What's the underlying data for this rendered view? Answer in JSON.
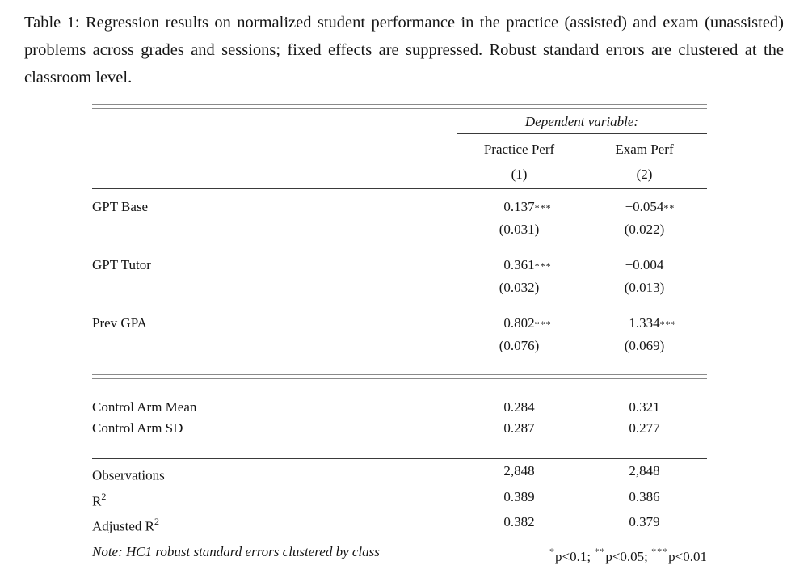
{
  "caption": "Table 1:  Regression results on normalized student performance in the practice (assisted) and exam (unassisted) problems across grades and sessions; fixed effects are suppressed.  Robust standard errors are clustered at the classroom level.",
  "table": {
    "dependent_variable_label": "Dependent variable:",
    "columns": [
      {
        "label": "Practice Perf",
        "number": "(1)"
      },
      {
        "label": "Exam Perf",
        "number": "(2)"
      }
    ],
    "coefficients": [
      {
        "label": "GPT Base",
        "estimates": [
          "0.137",
          "−0.054"
        ],
        "stars": [
          "***",
          "**"
        ],
        "se": [
          "(0.031)",
          "(0.022)"
        ]
      },
      {
        "label": "GPT Tutor",
        "estimates": [
          "0.361",
          "−0.004"
        ],
        "stars": [
          "***",
          ""
        ],
        "se": [
          "(0.032)",
          "(0.013)"
        ]
      },
      {
        "label": "Prev GPA",
        "estimates": [
          "0.802",
          "1.334"
        ],
        "stars": [
          "***",
          "***"
        ],
        "se": [
          "(0.076)",
          "(0.069)"
        ]
      }
    ],
    "summary": [
      {
        "label": "Control Arm Mean",
        "values": [
          "0.284",
          "0.321"
        ]
      },
      {
        "label": "Control Arm SD",
        "values": [
          "0.287",
          "0.277"
        ]
      }
    ],
    "stats": [
      {
        "label_base": "Observations",
        "label_sup": "",
        "values": [
          "2,848",
          "2,848"
        ]
      },
      {
        "label_base": "R",
        "label_sup": "2",
        "values": [
          "0.389",
          "0.386"
        ]
      },
      {
        "label_base": "Adjusted R",
        "label_sup": "2",
        "values": [
          "0.382",
          "0.379"
        ]
      }
    ],
    "note": "Note: HC1 robust standard errors clustered by class",
    "significance": [
      {
        "stars": "*",
        "text": "p<0.1; "
      },
      {
        "stars": "**",
        "text": "p<0.05; "
      },
      {
        "stars": "***",
        "text": "p<0.01"
      }
    ]
  }
}
